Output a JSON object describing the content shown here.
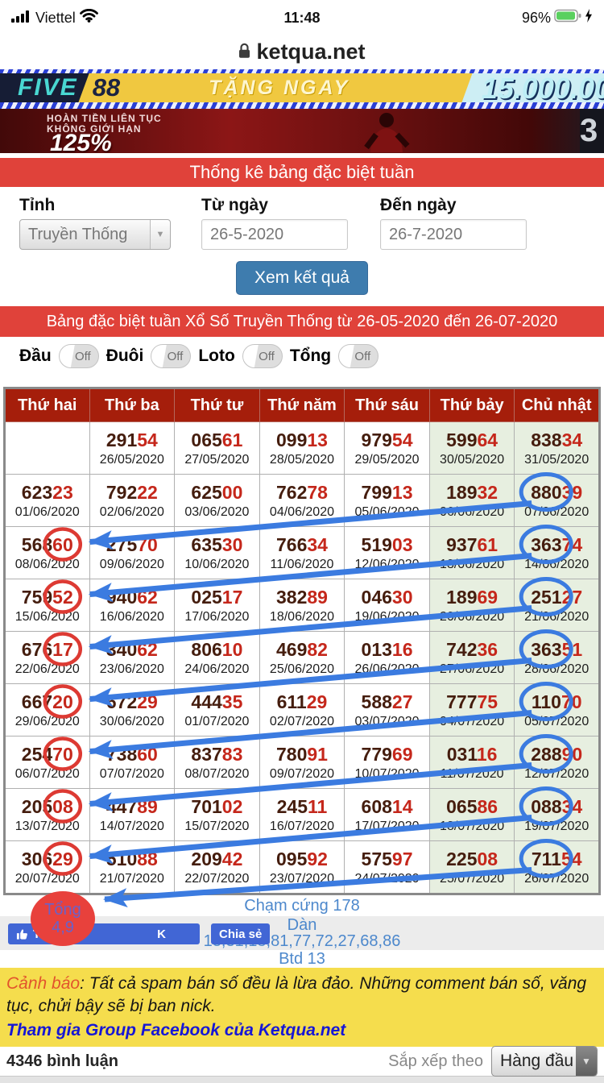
{
  "status_bar": {
    "carrier": "Viettel",
    "time": "11:48",
    "battery_pct": "96%"
  },
  "url_bar": {
    "domain": "ketqua.net"
  },
  "banners": {
    "five88": {
      "brand": "FIVE",
      "brand2": "88",
      "promo": "TẶNG NGAY",
      "amount": "15.000.00"
    },
    "cashback": {
      "line1": "HOÀN TIỀN LIÊN TỤC",
      "line2": "KHÔNG GIỚI HẠN",
      "percent": "125%",
      "side": "3"
    }
  },
  "stats_form": {
    "title": "Thống kê bảng đặc biệt tuần",
    "province_label": "Tỉnh",
    "province_value": "Truyền Thống",
    "from_label": "Từ ngày",
    "from_value": "26-5-2020",
    "to_label": "Đến ngày",
    "to_value": "26-7-2020",
    "submit": "Xem kết quả"
  },
  "results": {
    "title": "Bảng đặc biệt tuần Xổ Số Truyền Thống từ 26-05-2020 đến 26-07-2020",
    "toggles": [
      {
        "label": "Đầu",
        "state": "Off"
      },
      {
        "label": "Đuôi",
        "state": "Off"
      },
      {
        "label": "Loto",
        "state": "Off"
      },
      {
        "label": "Tổng",
        "state": "Off"
      }
    ],
    "columns": [
      "Thứ hai",
      "Thứ ba",
      "Thứ tư",
      "Thứ năm",
      "Thứ sáu",
      "Thứ bảy",
      "Chủ nhật"
    ],
    "rows": [
      [
        {
          "n": "",
          "d": ""
        },
        {
          "n": "29154",
          "d": "26/05/2020"
        },
        {
          "n": "06561",
          "d": "27/05/2020"
        },
        {
          "n": "09913",
          "d": "28/05/2020"
        },
        {
          "n": "97954",
          "d": "29/05/2020"
        },
        {
          "n": "59964",
          "d": "30/05/2020"
        },
        {
          "n": "83834",
          "d": "31/05/2020"
        }
      ],
      [
        {
          "n": "62323",
          "d": "01/06/2020"
        },
        {
          "n": "79222",
          "d": "02/06/2020"
        },
        {
          "n": "62500",
          "d": "03/06/2020"
        },
        {
          "n": "76278",
          "d": "04/06/2020"
        },
        {
          "n": "79913",
          "d": "05/06/2020"
        },
        {
          "n": "18932",
          "d": "06/06/2020"
        },
        {
          "n": "88039",
          "d": "07/06/2020"
        }
      ],
      [
        {
          "n": "56860",
          "d": "08/06/2020"
        },
        {
          "n": "27570",
          "d": "09/06/2020"
        },
        {
          "n": "63530",
          "d": "10/06/2020"
        },
        {
          "n": "76634",
          "d": "11/06/2020"
        },
        {
          "n": "51903",
          "d": "12/06/2020"
        },
        {
          "n": "93761",
          "d": "13/06/2020"
        },
        {
          "n": "36374",
          "d": "14/06/2020"
        }
      ],
      [
        {
          "n": "75952",
          "d": "15/06/2020"
        },
        {
          "n": "94062",
          "d": "16/06/2020"
        },
        {
          "n": "02517",
          "d": "17/06/2020"
        },
        {
          "n": "38289",
          "d": "18/06/2020"
        },
        {
          "n": "04630",
          "d": "19/06/2020"
        },
        {
          "n": "18969",
          "d": "20/06/2020"
        },
        {
          "n": "25127",
          "d": "21/06/2020"
        }
      ],
      [
        {
          "n": "67617",
          "d": "22/06/2020"
        },
        {
          "n": "34062",
          "d": "23/06/2020"
        },
        {
          "n": "80610",
          "d": "24/06/2020"
        },
        {
          "n": "46982",
          "d": "25/06/2020"
        },
        {
          "n": "01316",
          "d": "26/06/2020"
        },
        {
          "n": "74236",
          "d": "27/06/2020"
        },
        {
          "n": "36351",
          "d": "28/06/2020"
        }
      ],
      [
        {
          "n": "66720",
          "d": "29/06/2020"
        },
        {
          "n": "67229",
          "d": "30/06/2020"
        },
        {
          "n": "44435",
          "d": "01/07/2020"
        },
        {
          "n": "61129",
          "d": "02/07/2020"
        },
        {
          "n": "58827",
          "d": "03/07/2020"
        },
        {
          "n": "77775",
          "d": "04/07/2020"
        },
        {
          "n": "11070",
          "d": "05/07/2020"
        }
      ],
      [
        {
          "n": "25470",
          "d": "06/07/2020"
        },
        {
          "n": "73860",
          "d": "07/07/2020"
        },
        {
          "n": "83783",
          "d": "08/07/2020"
        },
        {
          "n": "78091",
          "d": "09/07/2020"
        },
        {
          "n": "77969",
          "d": "10/07/2020"
        },
        {
          "n": "03116",
          "d": "11/07/2020"
        },
        {
          "n": "28890",
          "d": "12/07/2020"
        }
      ],
      [
        {
          "n": "20508",
          "d": "13/07/2020"
        },
        {
          "n": "44789",
          "d": "14/07/2020"
        },
        {
          "n": "70102",
          "d": "15/07/2020"
        },
        {
          "n": "24511",
          "d": "16/07/2020"
        },
        {
          "n": "60814",
          "d": "17/07/2020"
        },
        {
          "n": "06586",
          "d": "18/07/2020"
        },
        {
          "n": "08834",
          "d": "19/07/2020"
        }
      ],
      [
        {
          "n": "30629",
          "d": "20/07/2020"
        },
        {
          "n": "51088",
          "d": "21/07/2020"
        },
        {
          "n": "20942",
          "d": "22/07/2020"
        },
        {
          "n": "09592",
          "d": "23/07/2020"
        },
        {
          "n": "57597",
          "d": "24/07/2020"
        },
        {
          "n": "22508",
          "d": "25/07/2020"
        },
        {
          "n": "71154",
          "d": "26/07/2020"
        }
      ]
    ]
  },
  "annotations": {
    "blue_rows": [
      1,
      2,
      3,
      4,
      5,
      6,
      7,
      8
    ],
    "red_rows": [
      2,
      3,
      4,
      5,
      6,
      7,
      8
    ],
    "arrows": [
      [
        1,
        2
      ],
      [
        2,
        3
      ],
      [
        3,
        4
      ],
      [
        4,
        5
      ],
      [
        5,
        6
      ],
      [
        6,
        7
      ],
      [
        7,
        8
      ]
    ],
    "final_from": 8,
    "blue_color": "#3b7be0",
    "red_color": "#dd3a33"
  },
  "summary": {
    "tong_label": "Tổng",
    "tong_value": "4,9",
    "cham_cung": "Chạm cứng 178",
    "dan_label": "Dàn",
    "dan_numbers": "13,31,18,81,77,72,27,68,86",
    "btd": "Btd 13"
  },
  "fb": {
    "like": "Thích",
    "like_count": "K",
    "share": "Chia sẻ"
  },
  "warning": {
    "prefix": "Cảnh báo",
    "rest": ": Tất cả spam bán số đều là lừa đảo. Những comment bán số, văng tục, chửi bậy sẽ bị ban nick.",
    "link": "Tham gia Group Facebook của Ketqua.net"
  },
  "comments": {
    "count": "4346 bình luận",
    "sort_label": "Sắp xếp theo",
    "sort_value": "Hàng đầu"
  }
}
